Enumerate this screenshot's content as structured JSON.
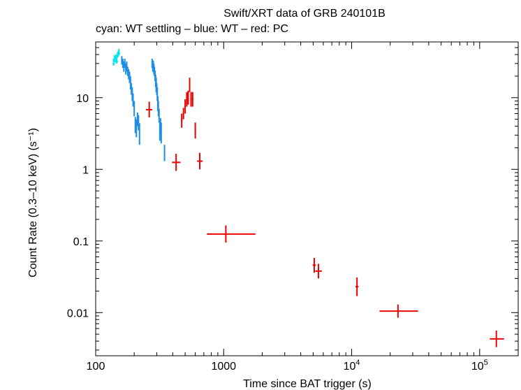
{
  "chart_data": {
    "type": "scatter",
    "title": "Swift/XRT data of GRB 240101B",
    "subtitle": "cyan: WT settling – blue: WT – red: PC",
    "xlabel": "Time since BAT trigger (s)",
    "ylabel": "Count Rate (0.3–10 keV) (s⁻¹)",
    "xscale": "log",
    "yscale": "log",
    "xlim": [
      100,
      200000
    ],
    "ylim": [
      0.0025,
      60
    ],
    "x_ticks": [
      {
        "value": 100,
        "label": "100"
      },
      {
        "value": 1000,
        "label": "1000"
      },
      {
        "value": 10000,
        "label": "10",
        "exp": "4"
      },
      {
        "value": 100000,
        "label": "10",
        "exp": "5"
      }
    ],
    "y_ticks": [
      {
        "value": 0.01,
        "label": "0.01"
      },
      {
        "value": 0.1,
        "label": "0.1"
      },
      {
        "value": 1,
        "label": "1"
      },
      {
        "value": 10,
        "label": "10"
      }
    ],
    "colors": {
      "wt_settling": "#00e5f0",
      "wt": "#1e8ee8",
      "pc": "#ee0000",
      "axes": "#000000"
    },
    "series": [
      {
        "name": "WT settling",
        "color": "#00e5f0",
        "points": [
          [
            138,
            30,
            2,
            3,
            2,
            5
          ],
          [
            140,
            34,
            2,
            3,
            2,
            5
          ],
          [
            142,
            33,
            2,
            3,
            2,
            5
          ],
          [
            144,
            35,
            2,
            3,
            2,
            5
          ],
          [
            146,
            32,
            2,
            3,
            2,
            5
          ],
          [
            148,
            38,
            2,
            3,
            2,
            5
          ],
          [
            150,
            40,
            2,
            3,
            2,
            5
          ],
          [
            152,
            42,
            2,
            3,
            3,
            6
          ]
        ]
      },
      {
        "name": "WT",
        "color": "#1e8ee8",
        "points": [
          [
            160,
            33,
            2,
            2,
            4,
            5
          ],
          [
            163,
            30,
            2,
            2,
            4,
            5
          ],
          [
            166,
            27,
            2,
            2,
            4,
            5
          ],
          [
            169,
            30,
            2,
            2,
            4,
            5
          ],
          [
            172,
            25,
            2,
            2,
            4,
            5
          ],
          [
            175,
            27,
            2,
            2,
            4,
            5
          ],
          [
            178,
            23,
            2,
            2,
            3,
            4
          ],
          [
            181,
            21,
            2,
            2,
            3,
            4
          ],
          [
            184,
            19,
            2,
            2,
            3,
            4
          ],
          [
            187,
            16,
            2,
            2,
            3,
            4
          ],
          [
            190,
            13,
            2,
            2,
            2,
            3
          ],
          [
            193,
            11,
            2,
            2,
            2,
            3
          ],
          [
            196,
            9.5,
            2,
            2,
            2,
            2
          ],
          [
            200,
            7,
            2,
            2,
            1.5,
            2
          ],
          [
            204,
            4.2,
            2,
            2,
            1,
            1.2
          ],
          [
            208,
            3.8,
            2,
            2,
            1,
            1.2
          ],
          [
            212,
            5,
            2,
            2,
            1,
            1.2
          ],
          [
            216,
            4.5,
            2,
            2,
            1,
            1.2
          ],
          [
            220,
            3.2,
            2,
            2,
            1,
            1.2
          ],
          [
            276,
            30,
            2,
            2,
            4,
            5
          ],
          [
            279,
            27,
            2,
            2,
            4,
            5
          ],
          [
            282,
            28,
            2,
            2,
            4,
            5
          ],
          [
            285,
            25,
            2,
            2,
            4,
            5
          ],
          [
            288,
            23,
            2,
            2,
            3,
            4
          ],
          [
            291,
            20,
            2,
            2,
            3,
            4
          ],
          [
            294,
            17,
            2,
            2,
            3,
            4
          ],
          [
            297,
            15,
            2,
            2,
            3,
            4
          ],
          [
            300,
            13,
            2,
            2,
            2,
            3
          ],
          [
            303,
            11,
            2,
            2,
            2,
            3
          ],
          [
            306,
            8.5,
            2,
            2,
            2,
            2
          ],
          [
            309,
            7,
            2,
            2,
            1.5,
            2
          ],
          [
            313,
            5.5,
            2,
            2,
            1,
            1.5
          ],
          [
            317,
            3.5,
            2,
            2,
            1,
            1.2
          ],
          [
            321,
            4,
            2,
            2,
            1,
            1.2
          ],
          [
            325,
            3.3,
            2,
            2,
            1,
            1.2
          ],
          [
            345,
            1.7,
            3,
            3,
            0.4,
            0.5
          ]
        ]
      },
      {
        "name": "PC",
        "color": "#ee0000",
        "points": [
          [
            262,
            6.8,
            15,
            15,
            1.5,
            2
          ],
          [
            425,
            1.25,
            30,
            35,
            0.3,
            0.4
          ],
          [
            470,
            4.8,
            6,
            6,
            1,
            1.2
          ],
          [
            485,
            6,
            6,
            6,
            1,
            1.2
          ],
          [
            500,
            7.5,
            6,
            6,
            1.5,
            2
          ],
          [
            515,
            9.5,
            6,
            6,
            2,
            2.5
          ],
          [
            528,
            10,
            5,
            5,
            2,
            2.5
          ],
          [
            542,
            15,
            5,
            5,
            3,
            4
          ],
          [
            556,
            9.5,
            6,
            6,
            2,
            2.5
          ],
          [
            572,
            9.5,
            7,
            7,
            2,
            2.5
          ],
          [
            600,
            3.5,
            8,
            8,
            0.8,
            1
          ],
          [
            650,
            1.3,
            30,
            35,
            0.3,
            0.4
          ],
          [
            1040,
            0.125,
            300,
            730,
            0.03,
            0.04
          ],
          [
            5100,
            0.046,
            150,
            150,
            0.01,
            0.012
          ],
          [
            5500,
            0.038,
            300,
            350,
            0.008,
            0.01
          ],
          [
            11000,
            0.023,
            300,
            300,
            0.006,
            0.008
          ],
          [
            23000,
            0.0105,
            6500,
            10000,
            0.002,
            0.0025
          ],
          [
            135000,
            0.0043,
            15000,
            20000,
            0.001,
            0.0013
          ]
        ]
      }
    ]
  }
}
